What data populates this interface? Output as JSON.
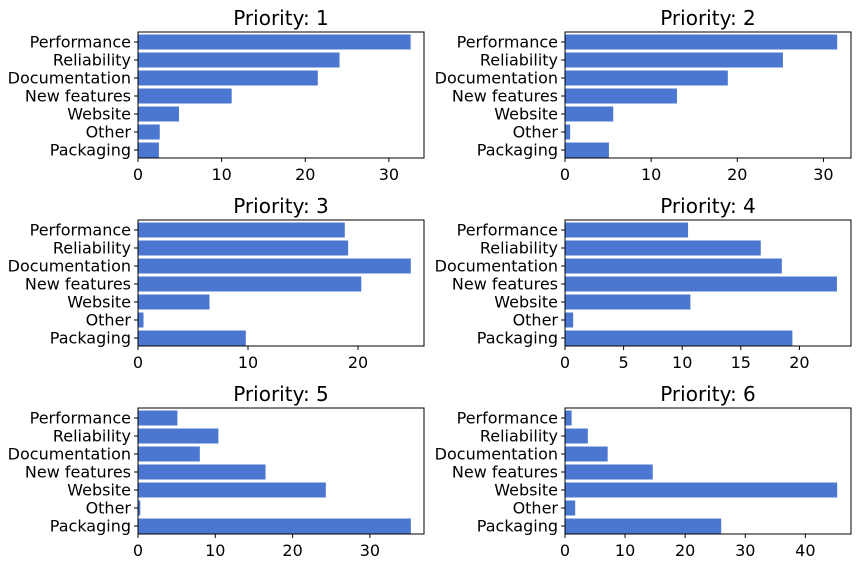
{
  "chart_data": [
    {
      "type": "bar",
      "orientation": "horizontal",
      "title": "Priority: 1",
      "categories": [
        "Performance",
        "Reliability",
        "Documentation",
        "New features",
        "Website",
        "Other",
        "Packaging"
      ],
      "values": [
        32.6,
        24.1,
        21.5,
        11.2,
        4.9,
        2.6,
        2.5
      ],
      "xlim": [
        0,
        34.2
      ],
      "xticks": [
        0,
        10,
        20,
        30
      ],
      "color": "#4b77d1"
    },
    {
      "type": "bar",
      "orientation": "horizontal",
      "title": "Priority: 2",
      "categories": [
        "Performance",
        "Reliability",
        "Documentation",
        "New features",
        "Website",
        "Other",
        "Packaging"
      ],
      "values": [
        31.6,
        25.3,
        18.9,
        13.0,
        5.6,
        0.6,
        5.1
      ],
      "xlim": [
        0,
        33.2
      ],
      "xticks": [
        0,
        10,
        20,
        30
      ],
      "color": "#4b77d1"
    },
    {
      "type": "bar",
      "orientation": "horizontal",
      "title": "Priority: 3",
      "categories": [
        "Performance",
        "Reliability",
        "Documentation",
        "New features",
        "Website",
        "Other",
        "Packaging"
      ],
      "values": [
        18.8,
        19.1,
        24.8,
        20.3,
        6.5,
        0.5,
        9.8
      ],
      "xlim": [
        0,
        26.0
      ],
      "xticks": [
        0,
        10,
        20
      ],
      "color": "#4b77d1"
    },
    {
      "type": "bar",
      "orientation": "horizontal",
      "title": "Priority: 4",
      "categories": [
        "Performance",
        "Reliability",
        "Documentation",
        "New features",
        "Website",
        "Other",
        "Packaging"
      ],
      "values": [
        10.5,
        16.7,
        18.5,
        23.2,
        10.7,
        0.7,
        19.4
      ],
      "xlim": [
        0,
        24.4
      ],
      "xticks": [
        0,
        5,
        10,
        15,
        20
      ],
      "color": "#4b77d1"
    },
    {
      "type": "bar",
      "orientation": "horizontal",
      "title": "Priority: 5",
      "categories": [
        "Performance",
        "Reliability",
        "Documentation",
        "New features",
        "Website",
        "Other",
        "Packaging"
      ],
      "values": [
        5.1,
        10.4,
        8.0,
        16.5,
        24.3,
        0.3,
        35.3
      ],
      "xlim": [
        0,
        37.0
      ],
      "xticks": [
        0,
        10,
        20,
        30
      ],
      "color": "#4b77d1"
    },
    {
      "type": "bar",
      "orientation": "horizontal",
      "title": "Priority: 6",
      "categories": [
        "Performance",
        "Reliability",
        "Documentation",
        "New features",
        "Website",
        "Other",
        "Packaging"
      ],
      "values": [
        1.1,
        3.8,
        7.1,
        14.6,
        45.3,
        1.7,
        26.0
      ],
      "xlim": [
        0,
        47.6
      ],
      "xticks": [
        0,
        10,
        20,
        30,
        40
      ],
      "color": "#4b77d1"
    }
  ]
}
